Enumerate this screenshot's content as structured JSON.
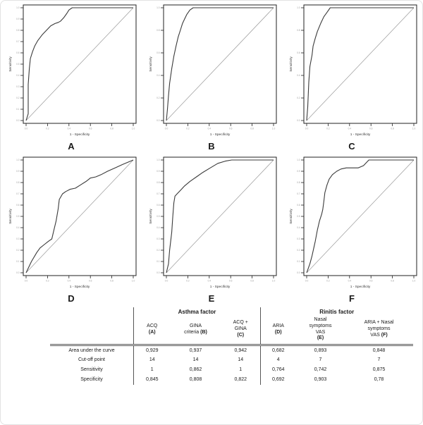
{
  "figure": {
    "description": "Six ROC curve panels labelled A-F with reference diagonal lines",
    "axis_color": "#222222",
    "curve_color": "#3a3a3a",
    "diagonal_color": "#999999"
  },
  "chart_data": [
    {
      "type": "line",
      "label": "A",
      "title": "ROC curve ACQ (A)",
      "xlabel": "1 - Specificity",
      "ylabel": "Sensitivity",
      "xlim": [
        0,
        1
      ],
      "ylim": [
        0,
        1
      ],
      "x_ticks": 6,
      "y_ticks": 11,
      "auc": "0,929",
      "diagonal": true,
      "roc": [
        [
          0,
          0
        ],
        [
          0.02,
          0.06
        ],
        [
          0.02,
          0.32
        ],
        [
          0.03,
          0.46
        ],
        [
          0.04,
          0.55
        ],
        [
          0.06,
          0.61
        ],
        [
          0.08,
          0.66
        ],
        [
          0.11,
          0.71
        ],
        [
          0.15,
          0.76
        ],
        [
          0.19,
          0.8
        ],
        [
          0.23,
          0.84
        ],
        [
          0.27,
          0.86
        ],
        [
          0.3,
          0.87
        ],
        [
          0.32,
          0.88
        ],
        [
          0.35,
          0.91
        ],
        [
          0.38,
          0.95
        ],
        [
          0.4,
          0.98
        ],
        [
          0.43,
          1.0
        ],
        [
          1,
          1
        ]
      ]
    },
    {
      "type": "line",
      "label": "B",
      "title": "ROC curve GINA criteria (B)",
      "xlabel": "1 - Specificity",
      "ylabel": "Sensitivity",
      "xlim": [
        0,
        1
      ],
      "ylim": [
        0,
        1
      ],
      "x_ticks": 6,
      "y_ticks": 6,
      "auc": "0,937",
      "diagonal": true,
      "roc": [
        [
          0,
          0
        ],
        [
          0.01,
          0.1
        ],
        [
          0.02,
          0.22
        ],
        [
          0.03,
          0.33
        ],
        [
          0.05,
          0.46
        ],
        [
          0.07,
          0.57
        ],
        [
          0.09,
          0.66
        ],
        [
          0.11,
          0.74
        ],
        [
          0.13,
          0.8
        ],
        [
          0.15,
          0.86
        ],
        [
          0.17,
          0.9
        ],
        [
          0.19,
          0.94
        ],
        [
          0.22,
          0.98
        ],
        [
          0.25,
          1.0
        ],
        [
          1,
          1
        ]
      ]
    },
    {
      "type": "line",
      "label": "C",
      "title": "ROC curve ACQ + GINA (C)",
      "xlabel": "1 - Specificity",
      "ylabel": "Sensitivity",
      "xlim": [
        0,
        1
      ],
      "ylim": [
        0,
        1
      ],
      "x_ticks": 6,
      "y_ticks": 6,
      "auc": "0,942",
      "diagonal": true,
      "roc": [
        [
          0,
          0
        ],
        [
          0.01,
          0.12
        ],
        [
          0.02,
          0.34
        ],
        [
          0.03,
          0.48
        ],
        [
          0.05,
          0.58
        ],
        [
          0.06,
          0.66
        ],
        [
          0.08,
          0.73
        ],
        [
          0.1,
          0.79
        ],
        [
          0.13,
          0.86
        ],
        [
          0.16,
          0.92
        ],
        [
          0.19,
          0.96
        ],
        [
          0.22,
          1.0
        ],
        [
          1,
          1
        ]
      ]
    },
    {
      "type": "line",
      "label": "D",
      "title": "ROC curve ARIA (D)",
      "xlabel": "1 - Specificity",
      "ylabel": "Sensitivity",
      "xlim": [
        0,
        1
      ],
      "ylim": [
        0,
        1
      ],
      "x_ticks": 6,
      "y_ticks": 11,
      "auc": "0,682",
      "diagonal": true,
      "roc": [
        [
          0,
          0
        ],
        [
          0.05,
          0.1
        ],
        [
          0.1,
          0.18
        ],
        [
          0.13,
          0.22
        ],
        [
          0.17,
          0.25
        ],
        [
          0.21,
          0.28
        ],
        [
          0.24,
          0.3
        ],
        [
          0.26,
          0.38
        ],
        [
          0.28,
          0.46
        ],
        [
          0.3,
          0.57
        ],
        [
          0.31,
          0.65
        ],
        [
          0.34,
          0.7
        ],
        [
          0.37,
          0.72
        ],
        [
          0.41,
          0.74
        ],
        [
          0.46,
          0.75
        ],
        [
          0.51,
          0.78
        ],
        [
          0.56,
          0.81
        ],
        [
          0.6,
          0.84
        ],
        [
          0.65,
          0.85
        ],
        [
          0.7,
          0.87
        ],
        [
          0.76,
          0.9
        ],
        [
          0.83,
          0.93
        ],
        [
          0.9,
          0.96
        ],
        [
          1,
          1
        ]
      ]
    },
    {
      "type": "line",
      "label": "E",
      "title": "ROC curve Nasal symptoms VAS (E)",
      "xlabel": "1 - Specificity",
      "ylabel": "Sensitivity",
      "xlim": [
        0,
        1
      ],
      "ylim": [
        0,
        1
      ],
      "x_ticks": 6,
      "y_ticks": 11,
      "auc": "0,893",
      "diagonal": true,
      "roc": [
        [
          0,
          0
        ],
        [
          0.02,
          0.08
        ],
        [
          0.03,
          0.2
        ],
        [
          0.05,
          0.36
        ],
        [
          0.06,
          0.5
        ],
        [
          0.07,
          0.62
        ],
        [
          0.08,
          0.68
        ],
        [
          0.1,
          0.7
        ],
        [
          0.13,
          0.73
        ],
        [
          0.17,
          0.77
        ],
        [
          0.22,
          0.81
        ],
        [
          0.28,
          0.85
        ],
        [
          0.34,
          0.89
        ],
        [
          0.41,
          0.93
        ],
        [
          0.48,
          0.97
        ],
        [
          0.55,
          0.99
        ],
        [
          0.61,
          1.0
        ],
        [
          1,
          1
        ]
      ]
    },
    {
      "type": "line",
      "label": "F",
      "title": "ROC curve ARIA + Nasal symptoms VAS (F)",
      "xlabel": "1 - Specificity",
      "ylabel": "Sensitivity",
      "xlim": [
        0,
        1
      ],
      "ylim": [
        0,
        1
      ],
      "x_ticks": 6,
      "y_ticks": 11,
      "auc": "0,848",
      "diagonal": true,
      "roc": [
        [
          0,
          0
        ],
        [
          0.03,
          0.08
        ],
        [
          0.05,
          0.15
        ],
        [
          0.08,
          0.28
        ],
        [
          0.1,
          0.38
        ],
        [
          0.12,
          0.46
        ],
        [
          0.14,
          0.52
        ],
        [
          0.15,
          0.56
        ],
        [
          0.16,
          0.63
        ],
        [
          0.17,
          0.71
        ],
        [
          0.19,
          0.78
        ],
        [
          0.21,
          0.83
        ],
        [
          0.24,
          0.87
        ],
        [
          0.28,
          0.9
        ],
        [
          0.32,
          0.92
        ],
        [
          0.37,
          0.93
        ],
        [
          0.48,
          0.93
        ],
        [
          0.53,
          0.95
        ],
        [
          0.56,
          0.98
        ],
        [
          0.58,
          1.0
        ],
        [
          1,
          1
        ]
      ]
    }
  ],
  "table": {
    "group_headers": [
      "Asthma factor",
      "Rinitis factor"
    ],
    "columns": [
      {
        "lines": [
          "ACQ",
          "(A)"
        ]
      },
      {
        "lines": [
          "GINA",
          "criteria (B)"
        ]
      },
      {
        "lines": [
          "ACQ +",
          "GINA",
          "(C)"
        ]
      },
      {
        "lines": [
          "ARIA",
          "(D)"
        ]
      },
      {
        "lines": [
          "Nasal",
          "symptoms",
          "VAS",
          "(E)"
        ]
      },
      {
        "lines": [
          "ARIA + Nasal",
          "symptoms",
          "VAS  (F)"
        ]
      }
    ],
    "rows": [
      {
        "label": "Area under the curve",
        "values": [
          "0,929",
          "0,937",
          "0,942",
          "0,682",
          "0,893",
          "0,848"
        ]
      },
      {
        "label": "Cut-off point",
        "values": [
          "14",
          "14",
          "14",
          "4",
          "7",
          "7"
        ]
      },
      {
        "label": "Sensitivity",
        "values": [
          "1",
          "0,862",
          "1",
          "0,764",
          "0,742",
          "0,875"
        ]
      },
      {
        "label": "Specificity",
        "values": [
          "0,845",
          "0,808",
          "0,822",
          "0,692",
          "0,903",
          "0,78"
        ]
      }
    ]
  }
}
